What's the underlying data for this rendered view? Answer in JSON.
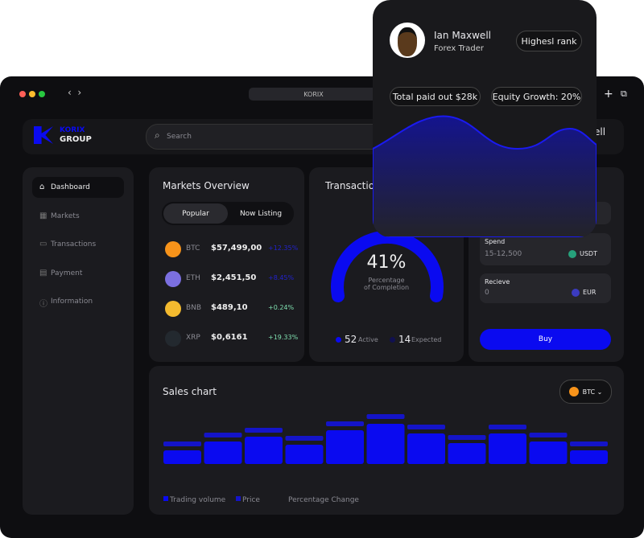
{
  "browser": {
    "url": "KORIX"
  },
  "brand": {
    "line1": "KORIX",
    "line2": "GROUP"
  },
  "search": {
    "placeholder": "Search"
  },
  "header": {
    "user_partial": "ell"
  },
  "sidebar": {
    "items": [
      "Dashboard",
      "Markets",
      "Transactions",
      "Payment",
      "Information"
    ]
  },
  "markets": {
    "title": "Markets Overview",
    "tabs": [
      "Popular",
      "Now Listing"
    ],
    "rows": [
      [
        "BTC",
        "$57,499,00",
        "+12.35%"
      ],
      [
        "ETH",
        "$2,451,50",
        "+8.45%"
      ],
      [
        "BNB",
        "$489,10",
        "+0.24%"
      ],
      [
        "XRP",
        "$0,6161",
        "+19.33%"
      ]
    ]
  },
  "transactions": {
    "title": "Transactions",
    "percent": "41%",
    "caption": [
      "Percentage",
      "of Completion"
    ],
    "active_count": "52",
    "active_label": "Active",
    "expected_count": "14",
    "expected_label": "Expected"
  },
  "exchange": {
    "spend_label": "Spend",
    "spend_range": "15-12,500",
    "spend_currency": "USDT",
    "receive_label": "Recieve",
    "receive_value": "0",
    "receive_currency": "EUR",
    "button": "Buy"
  },
  "sales_chart": {
    "title": "Sales chart",
    "coin": "BTC",
    "type": "bar",
    "legend": [
      "Trading volume",
      "Price",
      "Percentage Change"
    ],
    "series": [
      {
        "color": "#0a0af0",
        "values": [
          17,
          28,
          34,
          24,
          42,
          50,
          38,
          26,
          38,
          28,
          17
        ]
      },
      {
        "color": "#1414c8",
        "values": [
          28,
          39,
          45,
          35,
          53,
          62,
          49,
          36,
          49,
          39,
          28
        ]
      }
    ]
  },
  "profile": {
    "name": "Ian Maxwell",
    "role": "Forex Trader",
    "rank": "Highesl rank",
    "stats": [
      "Total paid out $28k",
      "Equity Growth: 20%"
    ]
  }
}
